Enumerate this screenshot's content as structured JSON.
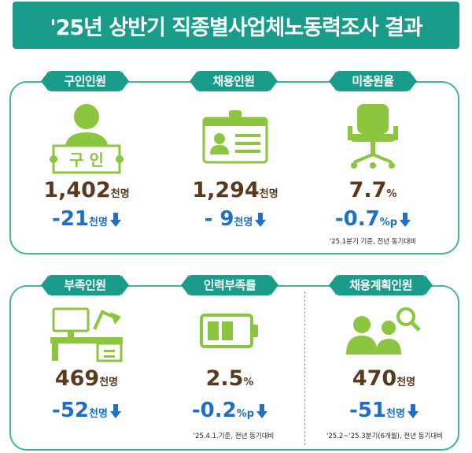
{
  "title": "'25년 상반기 직종별사업체노동력조사 결과",
  "colors": {
    "banner": "#1a9c8b",
    "icon_green": "#8cc63f",
    "value": "#5a3a1e",
    "change": "#1f6fc4"
  },
  "top_row": [
    {
      "label": "구인인원",
      "sign_text": "구 인",
      "value": "1,402",
      "value_unit": "천명",
      "change": "-21",
      "change_unit": "천명",
      "icon": "person-holding-sign-icon",
      "note": ""
    },
    {
      "label": "채용인원",
      "value": "1,294",
      "value_unit": "천명",
      "change": "- 9",
      "change_unit": "천명",
      "icon": "id-badge-icon",
      "note": ""
    },
    {
      "label": "미충원율",
      "value": "7.7",
      "value_unit": "%",
      "change": "-0.7",
      "change_unit": "%p",
      "icon": "office-chair-icon",
      "note": "'25.1분기 기준, 전년 동기대비"
    }
  ],
  "bottom_row": [
    {
      "label": "부족인원",
      "value": "469",
      "value_unit": "천명",
      "change": "-52",
      "change_unit": "천명",
      "icon": "desk-computer-icon",
      "note": ""
    },
    {
      "label": "인력부족률",
      "value": "2.5",
      "value_unit": "%",
      "change": "-0.2",
      "change_unit": "%p",
      "icon": "low-battery-icon",
      "note": "'25.4.1.기준, 전년 동기대비"
    },
    {
      "label": "채용계획인원",
      "value": "470",
      "value_unit": "천명",
      "change": "-51",
      "change_unit": "천명",
      "icon": "people-search-icon",
      "note": "'25.2~'25.3분기(6개월), 전년 동기대비"
    }
  ]
}
